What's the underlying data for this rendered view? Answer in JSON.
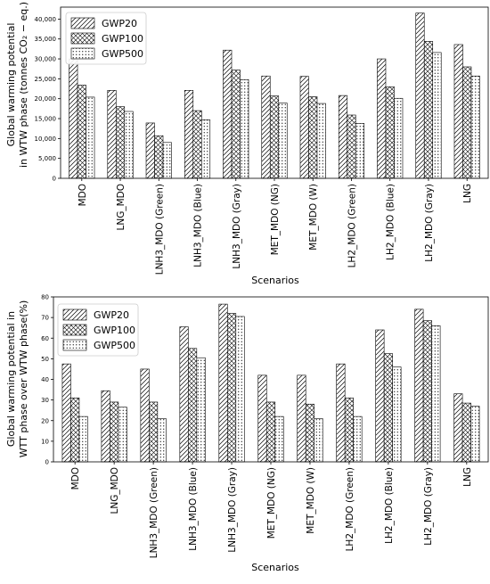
{
  "chart_data": [
    {
      "type": "bar",
      "categories": [
        "MDO",
        "LNG_MDO",
        "LNH3_MDO (Green)",
        "LNH3_MDO (Blue)",
        "LNH3_MDO (Gray)",
        "MET_MDO (NG)",
        "MET_MDO (W)",
        "LH2_MDO (Green)",
        "LH2_MDO (Blue)",
        "LH2_MDO (Gray)",
        "LNG"
      ],
      "series": [
        {
          "name": "GWP20",
          "pattern": "hatch-diag",
          "values": [
            30000,
            22100,
            13900,
            22100,
            32200,
            25700,
            25600,
            20800,
            30000,
            41500,
            33600
          ]
        },
        {
          "name": "GWP100",
          "pattern": "hatch-cross",
          "values": [
            23400,
            18000,
            10700,
            17000,
            27200,
            20700,
            20500,
            15900,
            23000,
            34400,
            28000
          ]
        },
        {
          "name": "GWP500",
          "pattern": "dots",
          "values": [
            20400,
            16800,
            9000,
            14700,
            24800,
            18900,
            18800,
            13800,
            20100,
            31600,
            25700
          ]
        }
      ],
      "title": "",
      "xlabel": "Scenarios",
      "ylabel_line1": "Global warming potential",
      "ylabel_line2": "in WTW phase (tonnes CO₂ − eq.)",
      "ylim": [
        0,
        43000
      ],
      "yticks": [
        0,
        5000,
        10000,
        15000,
        20000,
        25000,
        30000,
        35000,
        40000
      ],
      "ytick_labels": [
        "0",
        "5,000",
        "10,000",
        "15,000",
        "20,000",
        "25,000",
        "30,000",
        "35,000",
        "40,000"
      ],
      "legend_position": "top-left",
      "grid": false
    },
    {
      "type": "bar",
      "categories": [
        "MDO",
        "LNG_MDO",
        "LNH3_MDO (Green)",
        "LNH3_MDO (Blue)",
        "LNH3_MDO (Gray)",
        "MET_MDO (NG)",
        "MET_MDO (W)",
        "LH2_MDO (Green)",
        "LH2_MDO (Blue)",
        "LH2_MDO (Gray)",
        "LNG"
      ],
      "series": [
        {
          "name": "GWP20",
          "pattern": "hatch-diag",
          "values": [
            47.5,
            34.5,
            45.0,
            65.5,
            76.5,
            42.0,
            42.0,
            47.5,
            64.0,
            74.0,
            33.0
          ]
        },
        {
          "name": "GWP100",
          "pattern": "hatch-cross",
          "values": [
            31.0,
            29.0,
            29.0,
            55.0,
            72.0,
            29.0,
            28.0,
            31.0,
            52.5,
            68.5,
            28.5
          ]
        },
        {
          "name": "GWP500",
          "pattern": "dots",
          "values": [
            22.0,
            26.5,
            21.0,
            50.5,
            70.5,
            22.0,
            21.0,
            22.0,
            46.0,
            66.0,
            27.0
          ]
        }
      ],
      "title": "",
      "xlabel": "Scenarios",
      "ylabel_line1": "Global warming potential in",
      "ylabel_line2": "WTT phase over WTW phase(%)",
      "ylim": [
        0,
        80
      ],
      "yticks": [
        0,
        10,
        20,
        30,
        40,
        50,
        60,
        70,
        80
      ],
      "ytick_labels": [
        "0",
        "10",
        "20",
        "30",
        "40",
        "50",
        "60",
        "70",
        "80"
      ],
      "legend_position": "top-left",
      "grid": false
    }
  ]
}
